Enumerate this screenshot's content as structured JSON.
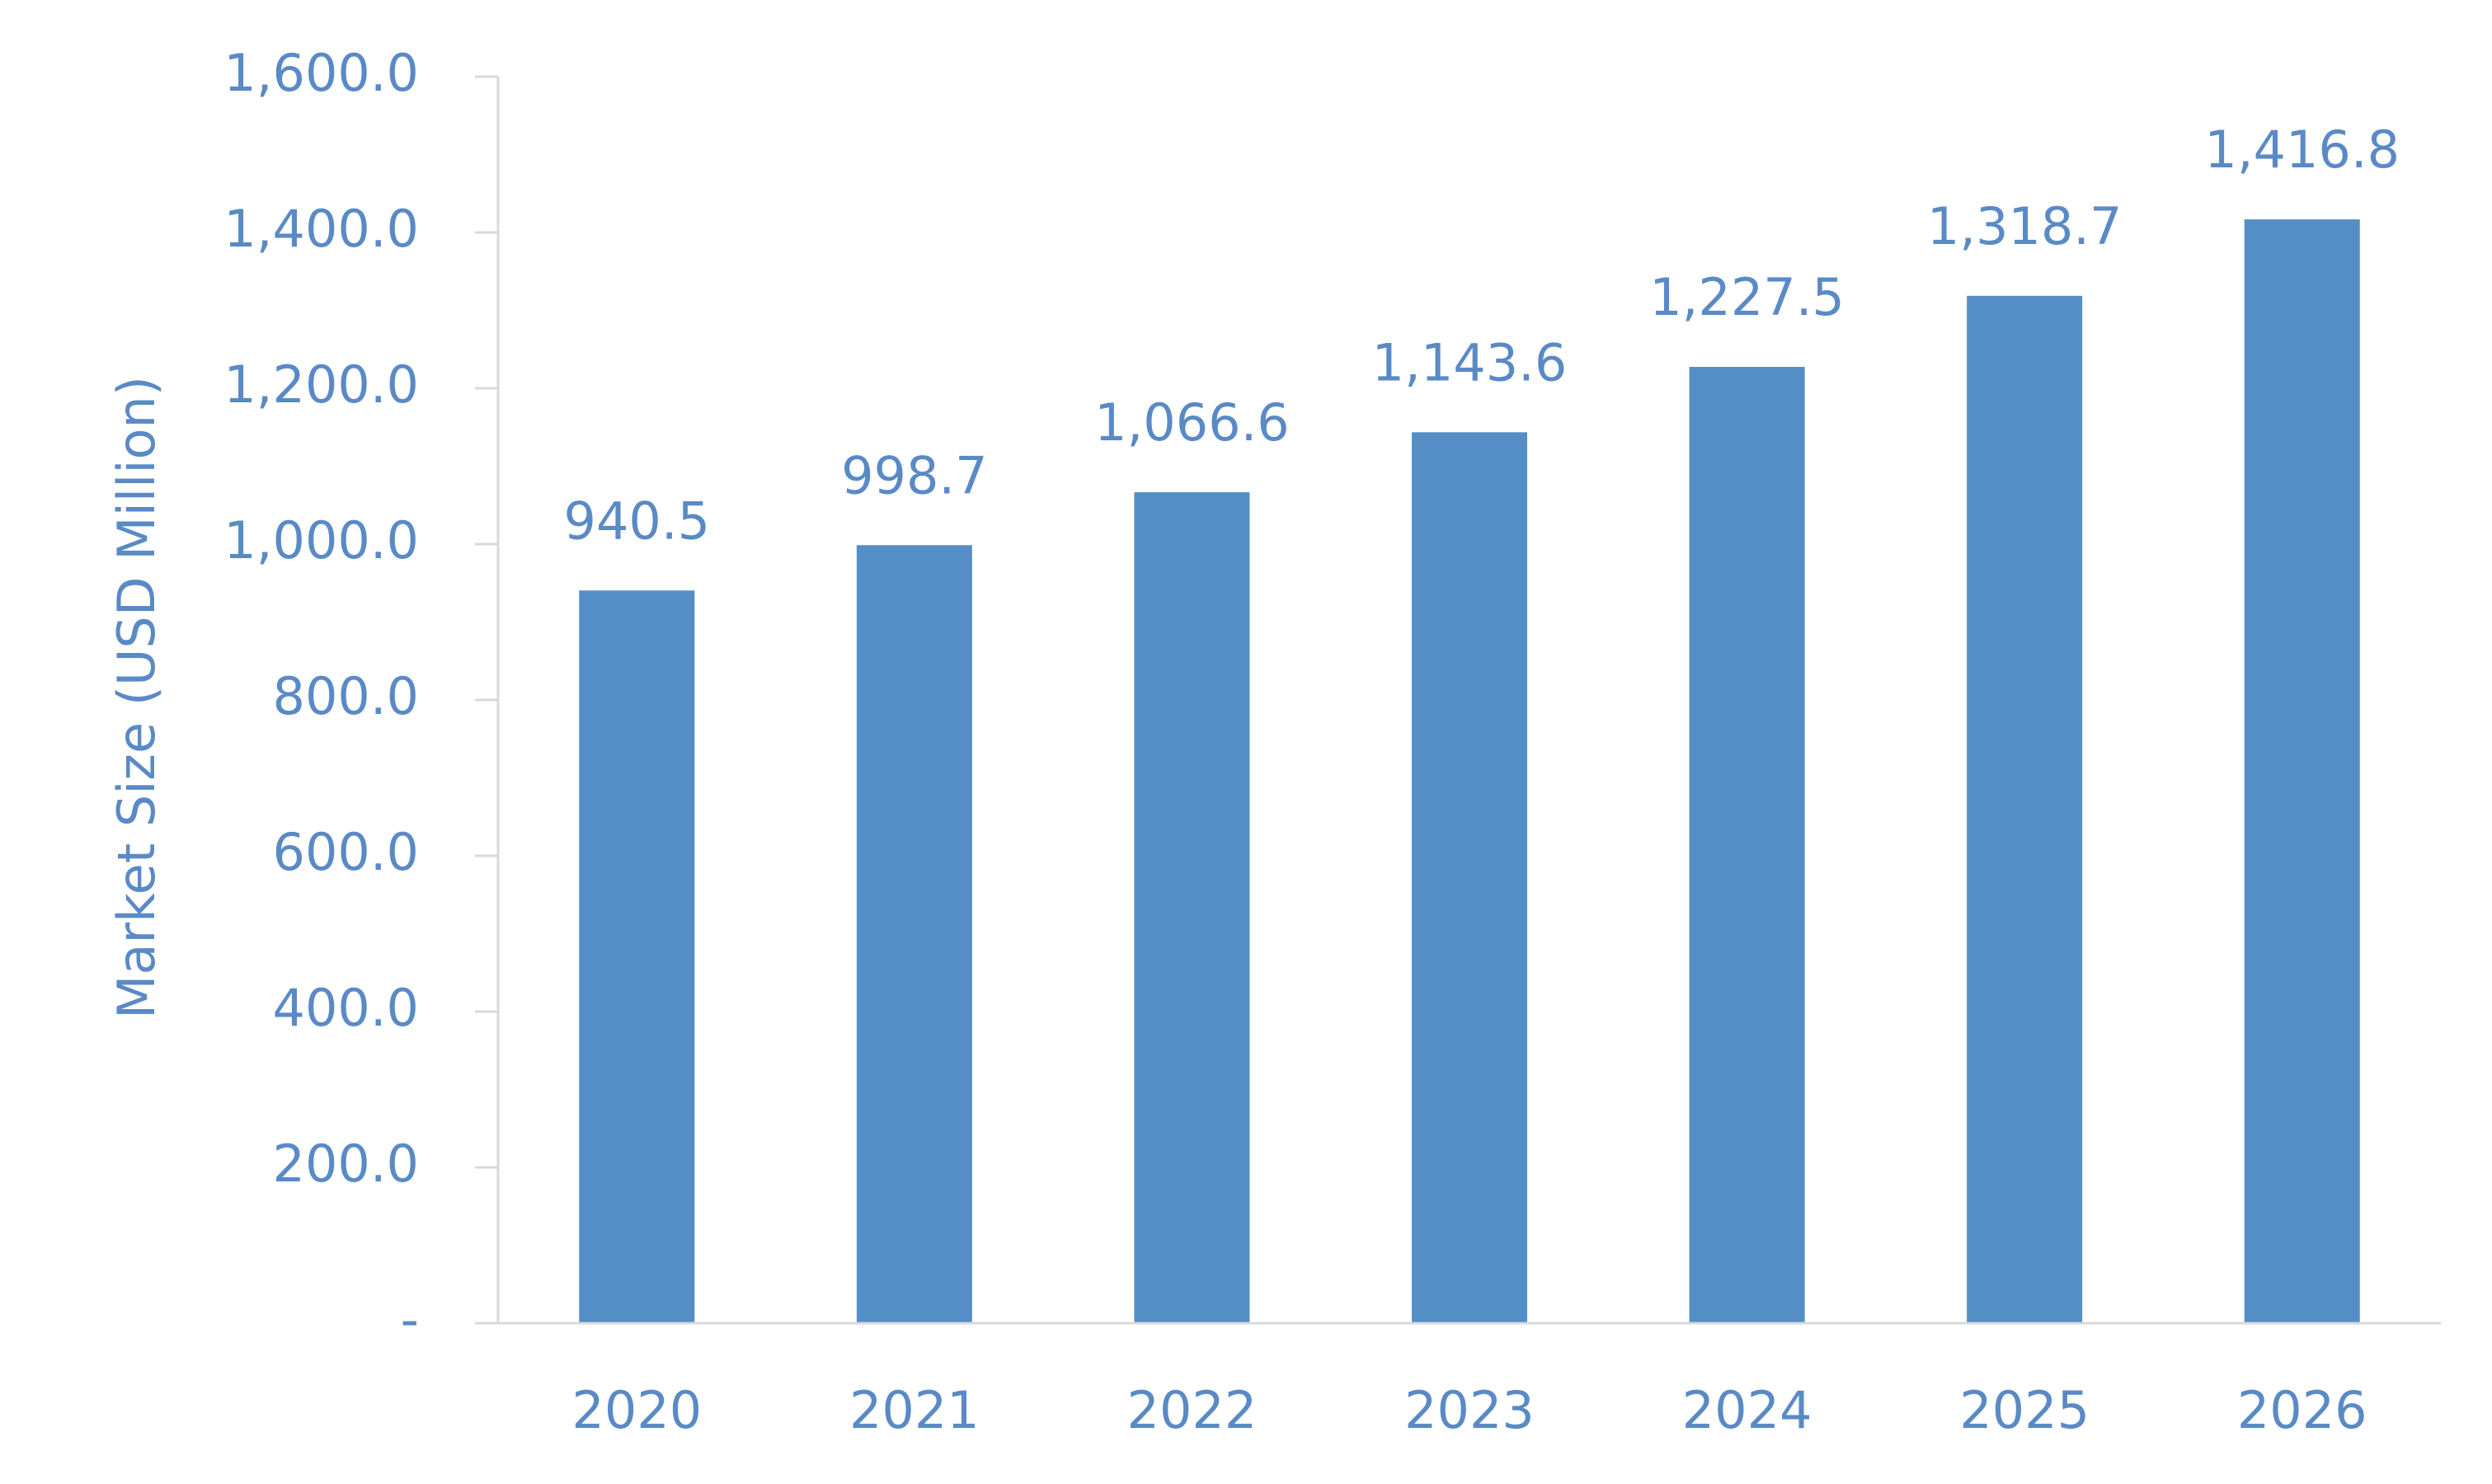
{
  "chart_data": {
    "type": "bar",
    "y_axis_label": "Market Size (USD Million)",
    "categories": [
      "2020",
      "2021",
      "2022",
      "2023",
      "2024",
      "2025",
      "2026"
    ],
    "values": [
      940.5,
      998.7,
      1066.6,
      1143.6,
      1227.5,
      1318.7,
      1416.8
    ],
    "value_labels": [
      "940.5",
      "998.7",
      "1,066.6",
      "1,143.6",
      "1,227.5",
      "1,318.7",
      "1,416.8"
    ],
    "color": "#558ec6",
    "ylim": [
      0,
      1600
    ],
    "yticks": [
      {
        "value": 0,
        "label": "-"
      },
      {
        "value": 200,
        "label": "200.0"
      },
      {
        "value": 400,
        "label": "400.0"
      },
      {
        "value": 600,
        "label": "600.0"
      },
      {
        "value": 800,
        "label": "800.0"
      },
      {
        "value": 1000,
        "label": "1,000.0"
      },
      {
        "value": 1200,
        "label": "1,200.0"
      },
      {
        "value": 1400,
        "label": "1,400.0"
      },
      {
        "value": 1600,
        "label": "1,600.0"
      }
    ],
    "grid": false
  }
}
